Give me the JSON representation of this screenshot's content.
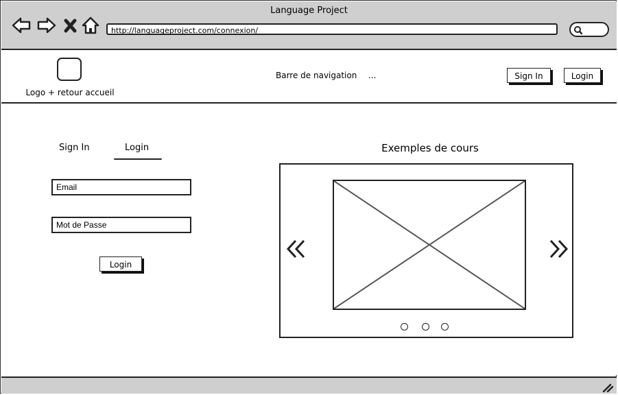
{
  "browser": {
    "title": "Language Project",
    "url": "http://languageproject.com/connexion/",
    "icons": [
      "back-arrow-icon",
      "forward-arrow-icon",
      "close-x-icon",
      "home-icon",
      "search-icon"
    ]
  },
  "header": {
    "logo_caption": "Logo + retour accueil",
    "nav_label": "Barre de navigation",
    "nav_more": "...",
    "signin_label": "Sign In",
    "login_label": "Login"
  },
  "auth": {
    "tabs": [
      "Sign In",
      "Login"
    ],
    "active_tab": "Login",
    "email_placeholder": "Email",
    "password_placeholder": "Mot de Passe",
    "submit_label": "Login"
  },
  "carousel": {
    "title": "Exemples de cours",
    "slide_count": 3,
    "icons": [
      "prev-chevrons-icon",
      "next-chevrons-icon",
      "image-placeholder-icon"
    ]
  },
  "statusbar": {
    "icon": "resize-grip-icon"
  }
}
